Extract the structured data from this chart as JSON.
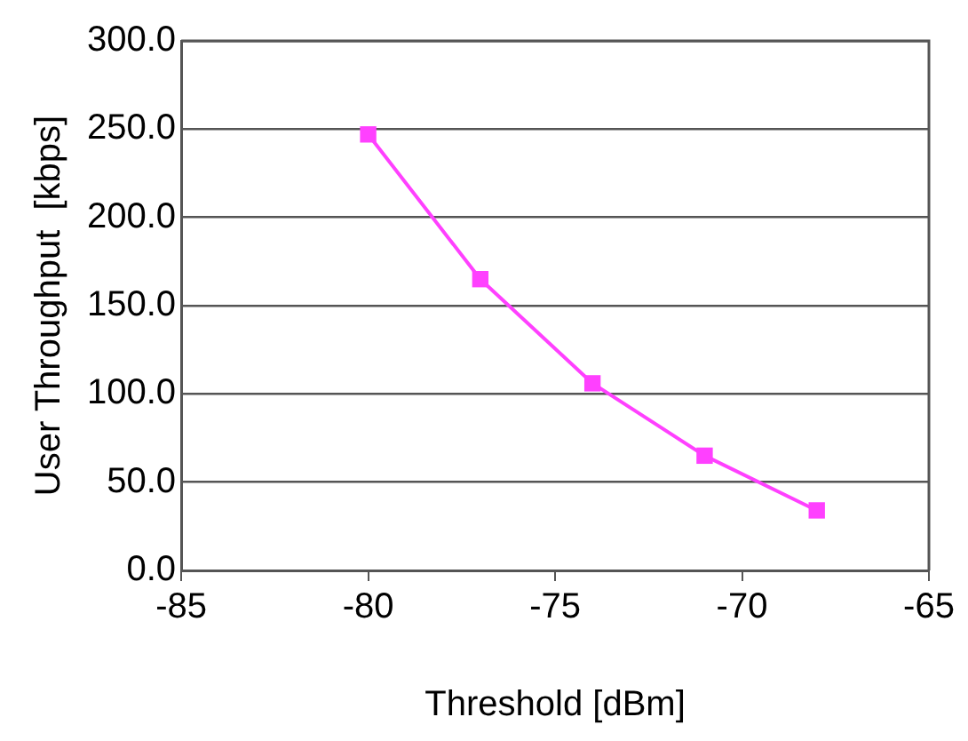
{
  "chart_data": {
    "type": "line",
    "xlabel": "Threshold [dBm]",
    "ylabel": "User Throughput  [kbps]",
    "x": [
      -80,
      -77,
      -74,
      -71,
      -68
    ],
    "series": [
      {
        "color": "#ff40ff",
        "values": [
          247,
          165,
          106,
          65,
          34
        ]
      }
    ],
    "xlim": [
      -85,
      -65
    ],
    "xticks": [
      -85,
      -80,
      -75,
      -70,
      -65
    ],
    "ylim": [
      0,
      300
    ],
    "yticks": [
      {
        "value": 0,
        "label": "0.0"
      },
      {
        "value": 50,
        "label": "50.0"
      },
      {
        "value": 100,
        "label": "100.0"
      },
      {
        "value": 150,
        "label": "150.0"
      },
      {
        "value": 200,
        "label": "200.0"
      },
      {
        "value": 250,
        "label": "250.0"
      },
      {
        "value": 300,
        "label": "300.0"
      }
    ],
    "grid": "y",
    "legend": false,
    "marker": "square",
    "line_style": "solid"
  }
}
